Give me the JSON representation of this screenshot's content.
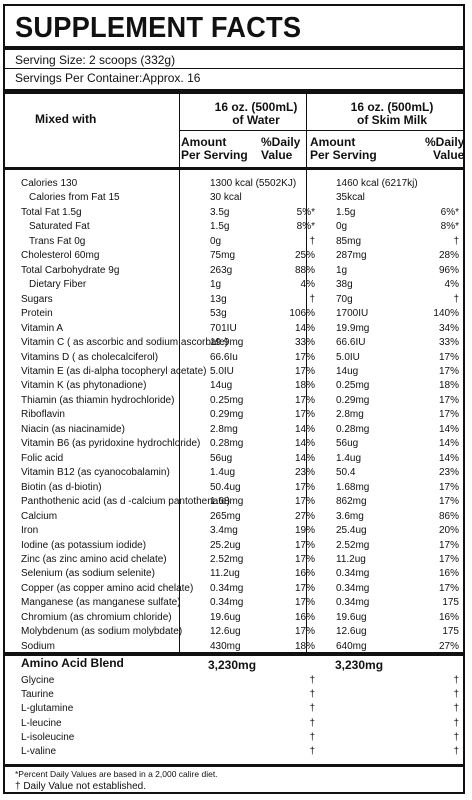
{
  "title": "SUPPLEMENT FACTS",
  "serving_size": "Serving Size: 2 scoops (332g)",
  "servings_per_container": "Servings Per Container:Approx. 16",
  "columns": {
    "mixed_with": "Mixed with",
    "water_line1": "16 oz. (500mL)",
    "water_line2": "of Water",
    "milk_line1": "16 oz. (500mL)",
    "milk_line2": "of Skim Milk",
    "amount_line1": "Amount",
    "amount_line2": "Per Serving",
    "dv_line1": "%Daily",
    "dv_line2": "Value"
  },
  "nutrients": [
    {
      "name": "Calories 130",
      "water_amt": "1300 kcal (5502KJ)",
      "water_dv": "",
      "milk_amt": "1460 kcal (6217kj)",
      "milk_dv": ""
    },
    {
      "name": "Calories from Fat 15",
      "water_amt": "30 kcal",
      "water_dv": "",
      "milk_amt": "35kcal",
      "milk_dv": ""
    },
    {
      "name": "Total Fat 1.5g",
      "water_amt": "3.5g",
      "water_dv": "5%*",
      "milk_amt": "1.5g",
      "milk_dv": "6%*"
    },
    {
      "name": "Saturated Fat",
      "water_amt": "1.5g",
      "water_dv": "8%*",
      "milk_amt": "0g",
      "milk_dv": "8%*"
    },
    {
      "name": "Trans Fat 0g",
      "water_amt": "0g",
      "water_dv": "†",
      "milk_amt": "85mg",
      "milk_dv": "†"
    },
    {
      "name": "Cholesterol 60mg",
      "water_amt": "75mg",
      "water_dv": "25%",
      "milk_amt": "287mg",
      "milk_dv": "28%"
    },
    {
      "name": "Total Carbohydrate 9g",
      "water_amt": "263g",
      "water_dv": "88%",
      "milk_amt": "1g",
      "milk_dv": "96%"
    },
    {
      "name": "Dietary Fiber",
      "water_amt": "1g",
      "water_dv": "4%",
      "milk_amt": "38g",
      "milk_dv": "4%"
    },
    {
      "name": "Sugars",
      "water_amt": "13g",
      "water_dv": "†",
      "milk_amt": "70g",
      "milk_dv": "†"
    },
    {
      "name": "Protein",
      "water_amt": "53g",
      "water_dv": "106%",
      "milk_amt": "1700IU",
      "milk_dv": "140%"
    },
    {
      "name": "Vitamin A",
      "water_amt": "701IU",
      "water_dv": "14%",
      "milk_amt": "19.9mg",
      "milk_dv": "34%"
    },
    {
      "name": "Vitamin C ( as ascorbic and sodium ascorbate)",
      "water_amt": "19.9mg",
      "water_dv": "33%",
      "milk_amt": "66.6IU",
      "milk_dv": "33%"
    },
    {
      "name": "Vitamins D ( as cholecalciferol)",
      "water_amt": "66.6Iu",
      "water_dv": "17%",
      "milk_amt": "5.0IU",
      "milk_dv": "17%"
    },
    {
      "name": "Vitamin E (as di-alpha tocopheryl acetate)",
      "water_amt": "5.0IU",
      "water_dv": "17%",
      "milk_amt": "14ug",
      "milk_dv": "17%"
    },
    {
      "name": "Vitamin K (as phytonadione)",
      "water_amt": "14ug",
      "water_dv": "18%",
      "milk_amt": "0.25mg",
      "milk_dv": "18%"
    },
    {
      "name": "Thiamin (as thiamin hydrochloride)",
      "water_amt": "0.25mg",
      "water_dv": "17%",
      "milk_amt": "0.29mg",
      "milk_dv": "17%"
    },
    {
      "name": "Riboflavin",
      "water_amt": "0.29mg",
      "water_dv": "17%",
      "milk_amt": "2.8mg",
      "milk_dv": "17%"
    },
    {
      "name": "Niacin (as niacinamide)",
      "water_amt": "2.8mg",
      "water_dv": "14%",
      "milk_amt": "0.28mg",
      "milk_dv": "14%"
    },
    {
      "name": "Vitamin B6 (as pyridoxine hydrochloride)",
      "water_amt": "0.28mg",
      "water_dv": "14%",
      "milk_amt": "56ug",
      "milk_dv": "14%"
    },
    {
      "name": "Folic acid",
      "water_amt": "56ug",
      "water_dv": "14%",
      "milk_amt": "1.4ug",
      "milk_dv": "14%"
    },
    {
      "name": "Vitamin B12 (as cyanocobalamin)",
      "water_amt": "1.4ug",
      "water_dv": "23%",
      "milk_amt": "50.4",
      "milk_dv": "23%"
    },
    {
      "name": "Biotin (as d-biotin)",
      "water_amt": "50.4ug",
      "water_dv": "17%",
      "milk_amt": "1.68mg",
      "milk_dv": "17%"
    },
    {
      "name": "Panthothenic acid (as d -calcium pantothenate)",
      "water_amt": "1.68mg",
      "water_dv": "17%",
      "milk_amt": "862mg",
      "milk_dv": "17%"
    },
    {
      "name": "Calcium",
      "water_amt": "265mg",
      "water_dv": "27%",
      "milk_amt": "3.6mg",
      "milk_dv": "86%"
    },
    {
      "name": "Iron",
      "water_amt": "3.4mg",
      "water_dv": "19%",
      "milk_amt": "25.4ug",
      "milk_dv": "20%"
    },
    {
      "name": "Iodine (as potassium iodide)",
      "water_amt": "25.2ug",
      "water_dv": "17%",
      "milk_amt": "2.52mg",
      "milk_dv": "17%"
    },
    {
      "name": "Zinc (as zinc amino acid chelate)",
      "water_amt": "2.52mg",
      "water_dv": "17%",
      "milk_amt": "11.2ug",
      "milk_dv": "17%"
    },
    {
      "name": "Selenium (as sodium selenite)",
      "water_amt": "11.2ug",
      "water_dv": "16%",
      "milk_amt": "0.34mg",
      "milk_dv": "16%"
    },
    {
      "name": "Copper (as copper amino acid chelate)",
      "water_amt": "0.34mg",
      "water_dv": "17%",
      "milk_amt": "0.34mg",
      "milk_dv": "17%"
    },
    {
      "name": "Manganese (as manganese sulfate)",
      "water_amt": "0.34mg",
      "water_dv": "17%",
      "milk_amt": "0.34mg",
      "milk_dv": "175"
    },
    {
      "name": "Chromium (as chromium chloride)",
      "water_amt": "19.6ug",
      "water_dv": "16%",
      "milk_amt": "19.6ug",
      "milk_dv": "16%"
    },
    {
      "name": "Molybdenum (as sodium molybdate)",
      "water_amt": "12.6ug",
      "water_dv": "17%",
      "milk_amt": "12.6ug",
      "milk_dv": "175"
    },
    {
      "name": "Sodium",
      "water_amt": "430mg",
      "water_dv": "18%",
      "milk_amt": "640mg",
      "milk_dv": "27%"
    }
  ],
  "amino_blend": {
    "label": "Amino Acid Blend",
    "water_amt": "3,230mg",
    "milk_amt": "3,230mg",
    "items": [
      {
        "name": "Glycine",
        "water_dv": "†",
        "milk_dv": "†"
      },
      {
        "name": "Taurine",
        "water_dv": "†",
        "milk_dv": "†"
      },
      {
        "name": "L-glutamine",
        "water_dv": "†",
        "milk_dv": "†"
      },
      {
        "name": "L-leucine",
        "water_dv": "†",
        "milk_dv": "†"
      },
      {
        "name": "L-isoleucine",
        "water_dv": "†",
        "milk_dv": "†"
      },
      {
        "name": "L-valine",
        "water_dv": "†",
        "milk_dv": "†"
      }
    ]
  },
  "footnote1": "*Percent Daily Values are based in a 2,000 calire diet.",
  "footnote2": "† Daily Value not established."
}
